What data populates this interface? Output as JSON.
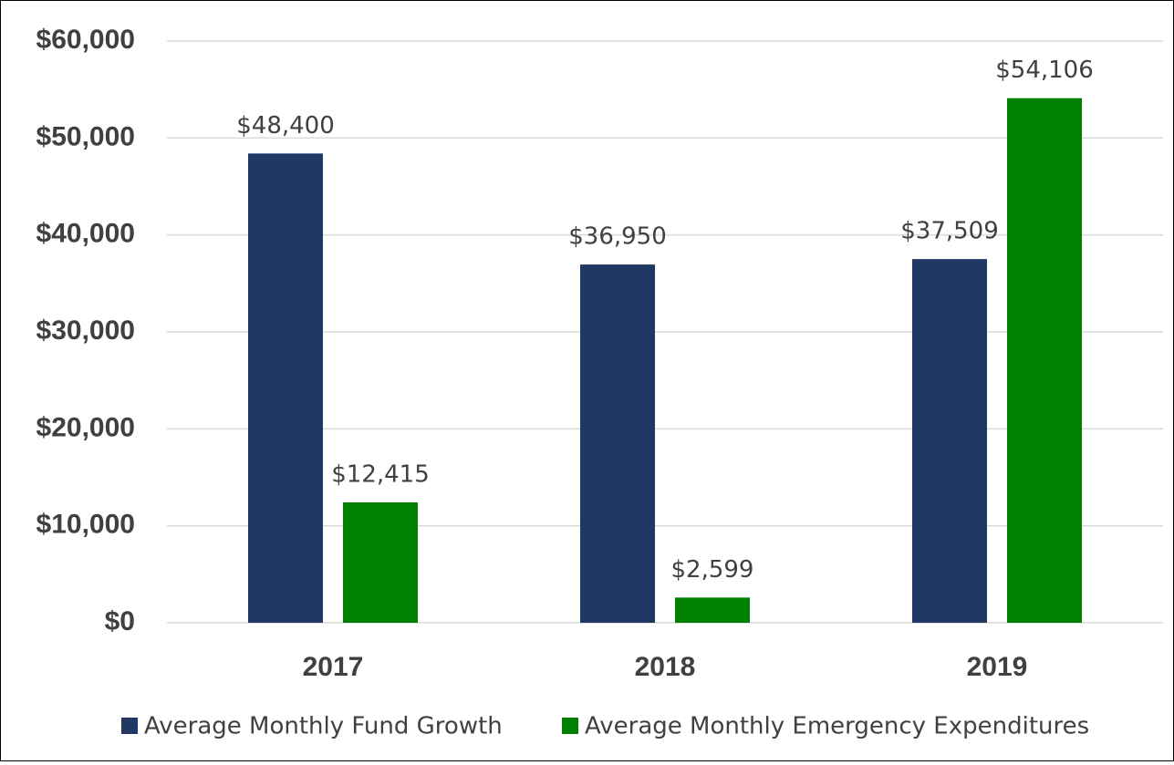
{
  "chart_data": {
    "type": "bar",
    "categories": [
      "2017",
      "2018",
      "2019"
    ],
    "series": [
      {
        "name": "Average Monthly Fund Growth",
        "color": "#203864",
        "values": [
          48400,
          36950,
          37509
        ],
        "value_labels": [
          "$48,400",
          "$36,950",
          "$37,509"
        ]
      },
      {
        "name": "Average Monthly Emergency Expenditures",
        "color": "#008000",
        "values": [
          12415,
          2599,
          54106
        ],
        "value_labels": [
          "$12,415",
          "$2,599",
          "$54,106"
        ]
      }
    ],
    "ylim": [
      0,
      60000
    ],
    "yticks": [
      {
        "value": 0,
        "label": "$0"
      },
      {
        "value": 10000,
        "label": "$10,000"
      },
      {
        "value": 20000,
        "label": "$20,000"
      },
      {
        "value": 30000,
        "label": "$30,000"
      },
      {
        "value": 40000,
        "label": "$40,000"
      },
      {
        "value": 50000,
        "label": "$50,000"
      },
      {
        "value": 60000,
        "label": "$60,000"
      }
    ],
    "grid": true,
    "legend": "bottom"
  }
}
